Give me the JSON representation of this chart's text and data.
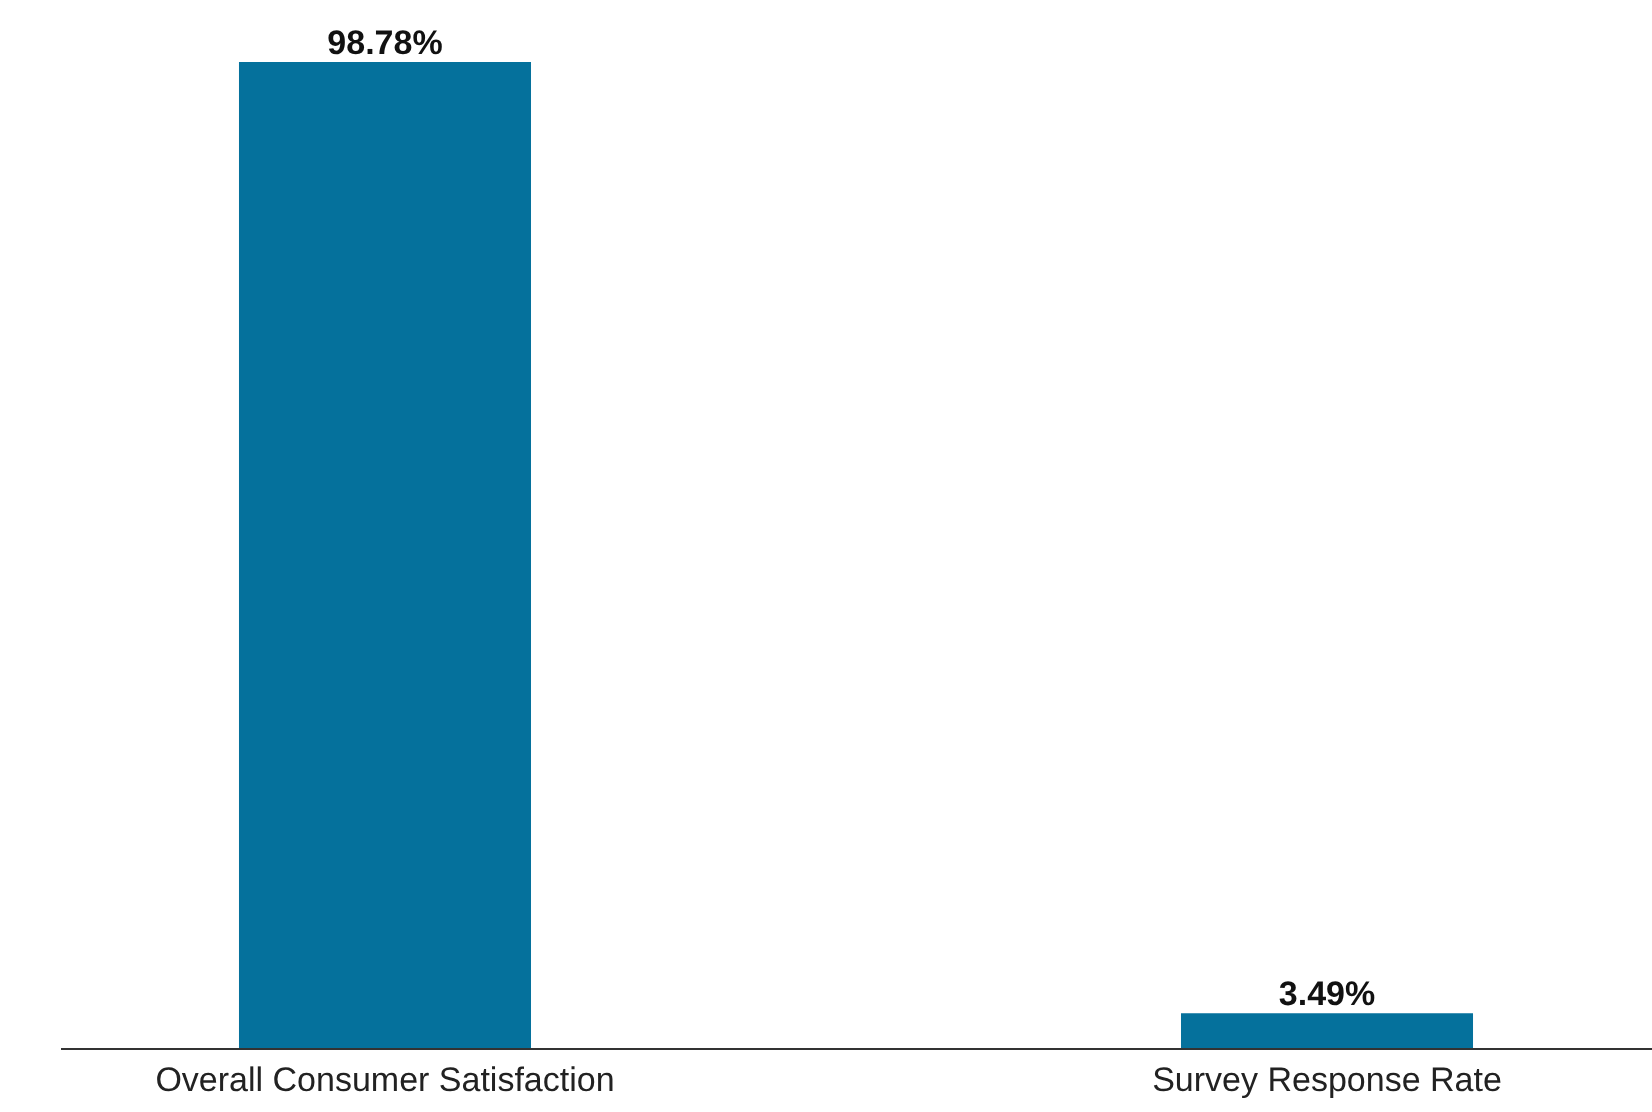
{
  "chart_data": {
    "type": "bar",
    "categories": [
      "Overall Consumer Satisfaction",
      "Survey Response Rate"
    ],
    "values": [
      98.78,
      3.49
    ],
    "value_labels": [
      "98.78%",
      "3.49%"
    ],
    "color": "#05719c",
    "grid": false
  }
}
